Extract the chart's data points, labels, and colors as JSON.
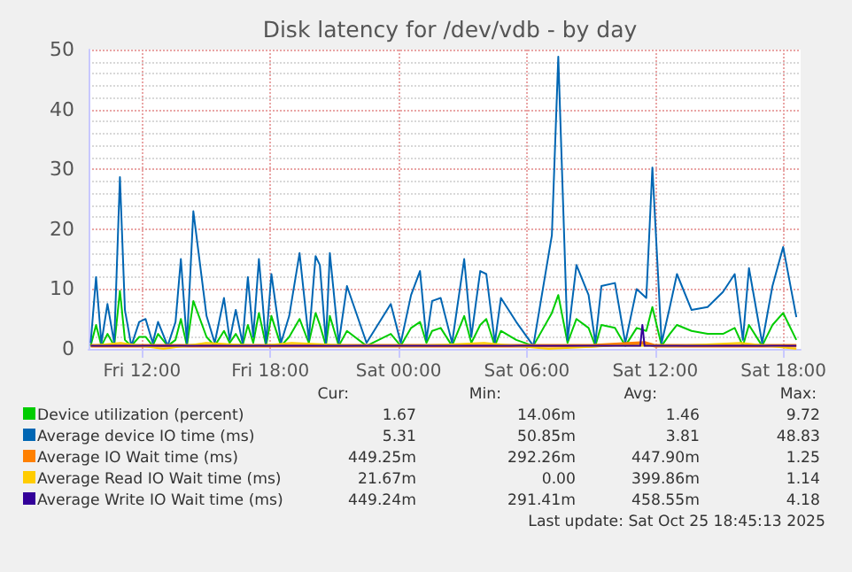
{
  "chart_data": {
    "type": "line",
    "title": "Disk latency for /dev/vdb - by day",
    "xlim": [
      "2025-10-24T09:30",
      "2025-10-25T18:48"
    ],
    "xticks": [
      {
        "value": "2025-10-24T12:00",
        "label": "Fri 12:00"
      },
      {
        "value": "2025-10-24T18:00",
        "label": "Fri 18:00"
      },
      {
        "value": "2025-10-25T00:00",
        "label": "Sat 00:00"
      },
      {
        "value": "2025-10-25T06:00",
        "label": "Sat 06:00"
      },
      {
        "value": "2025-10-25T12:00",
        "label": "Sat 12:00"
      },
      {
        "value": "2025-10-25T18:00",
        "label": "Sat 18:00"
      }
    ],
    "ylim": [
      0,
      50
    ],
    "yticks": [
      0,
      10,
      20,
      30,
      40,
      50
    ],
    "grid": true,
    "legend": "bottom",
    "marker": "none",
    "x": [
      "2025-10-24T09:36",
      "2025-10-24T09:51",
      "2025-10-24T10:06",
      "2025-10-24T10:23",
      "2025-10-24T10:42",
      "2025-10-24T10:58",
      "2025-10-24T11:12",
      "2025-10-24T11:30",
      "2025-10-24T11:52",
      "2025-10-24T12:10",
      "2025-10-24T12:30",
      "2025-10-24T12:45",
      "2025-10-24T13:12",
      "2025-10-24T13:34",
      "2025-10-24T13:49",
      "2025-10-24T14:06",
      "2025-10-24T14:24",
      "2025-10-24T15:01",
      "2025-10-24T15:24",
      "2025-10-24T15:50",
      "2025-10-24T16:06",
      "2025-10-24T16:23",
      "2025-10-24T16:42",
      "2025-10-24T16:57",
      "2025-10-24T17:12",
      "2025-10-24T17:28",
      "2025-10-24T17:48",
      "2025-10-24T18:03",
      "2025-10-24T18:30",
      "2025-10-24T18:53",
      "2025-10-24T19:22",
      "2025-10-24T19:48",
      "2025-10-24T20:07",
      "2025-10-24T20:19",
      "2025-10-24T20:36",
      "2025-10-24T20:47",
      "2025-10-24T21:12",
      "2025-10-24T21:35",
      "2025-10-24T22:30",
      "2025-10-24T23:38",
      "2025-10-25T00:06",
      "2025-10-25T00:35",
      "2025-10-25T01:00",
      "2025-10-25T01:18",
      "2025-10-25T01:34",
      "2025-10-25T01:58",
      "2025-10-25T02:30",
      "2025-10-25T03:04",
      "2025-10-25T03:24",
      "2025-10-25T03:49",
      "2025-10-25T04:06",
      "2025-10-25T04:30",
      "2025-10-25T04:47",
      "2025-10-25T05:30",
      "2025-10-25T06:18",
      "2025-10-25T07:10",
      "2025-10-25T07:28",
      "2025-10-25T07:54",
      "2025-10-25T08:19",
      "2025-10-25T08:53",
      "2025-10-25T09:12",
      "2025-10-25T09:29",
      "2025-10-25T10:07",
      "2025-10-25T10:36",
      "2025-10-25T11:08",
      "2025-10-25T11:35",
      "2025-10-25T11:52",
      "2025-10-25T12:18",
      "2025-10-25T12:41",
      "2025-10-25T13:01",
      "2025-10-25T13:42",
      "2025-10-25T14:27",
      "2025-10-25T15:10",
      "2025-10-25T15:43",
      "2025-10-25T16:06",
      "2025-10-25T16:23",
      "2025-10-25T17:00",
      "2025-10-25T17:29",
      "2025-10-25T17:59",
      "2025-10-25T18:36"
    ],
    "series": [
      {
        "name": "Device utilization (percent)",
        "color": "#00cc00",
        "values": [
          0.5,
          4,
          0.5,
          2.5,
          0.5,
          9.7,
          1.5,
          0.5,
          2,
          2,
          0.5,
          2.5,
          0.5,
          1.5,
          5,
          0.5,
          8,
          2,
          0.5,
          3,
          1,
          2.5,
          0.5,
          4,
          1,
          6,
          0.5,
          5.5,
          0.5,
          2,
          5,
          1,
          6,
          4,
          0.5,
          5.5,
          0.5,
          3,
          0.5,
          2.5,
          0.5,
          3.5,
          4.5,
          1,
          3,
          3.5,
          0.5,
          5.5,
          1,
          4,
          5,
          0.5,
          3,
          1.5,
          0.5,
          6,
          9,
          1,
          5,
          3.5,
          0.5,
          4,
          3.5,
          0.5,
          3.5,
          3,
          7,
          0.5,
          2.5,
          4,
          3,
          2.5,
          2.5,
          3.5,
          0.5,
          4,
          0.5,
          4,
          6,
          1.5
        ]
      },
      {
        "name": "Average device IO time (ms)",
        "color": "#0066b3",
        "values": [
          1,
          12,
          1,
          7.5,
          1,
          28.7,
          6.5,
          0.5,
          4.5,
          5,
          1,
          4.5,
          0.5,
          4.5,
          15,
          1,
          23,
          5.5,
          1,
          8.5,
          1.5,
          6.5,
          1,
          12,
          2,
          15,
          1,
          12.5,
          1,
          5.5,
          16,
          1.5,
          15.5,
          14,
          1,
          16,
          1,
          10.5,
          1,
          7.5,
          1,
          9,
          13,
          1.5,
          8,
          8.5,
          1,
          15,
          2,
          13,
          12.5,
          1,
          8.5,
          4.5,
          0.5,
          19,
          48.8,
          1.5,
          14,
          9,
          1,
          10.5,
          11,
          1,
          10,
          8.5,
          30.3,
          1,
          7,
          12.5,
          6.5,
          7,
          9.5,
          12.5,
          1.5,
          13.5,
          1,
          10.5,
          17,
          5.3
        ]
      },
      {
        "name": "Average IO Wait time (ms)",
        "color": "#ff8000",
        "x": [
          "2025-10-24T09:36",
          "2025-10-24T13:00",
          "2025-10-24T17:00",
          "2025-10-24T21:00",
          "2025-10-25T01:00",
          "2025-10-25T05:00",
          "2025-10-25T09:00",
          "2025-10-25T11:30",
          "2025-10-25T12:00",
          "2025-10-25T15:00",
          "2025-10-25T18:36"
        ],
        "values": [
          0.5,
          0.5,
          0.5,
          0.5,
          0.5,
          0.5,
          0.5,
          1,
          0.5,
          0.5,
          0.5
        ]
      },
      {
        "name": "Average Read IO Wait time (ms)",
        "color": "#ffcc00",
        "x": [
          "2025-10-24T09:36",
          "2025-10-24T11:00",
          "2025-10-24T13:00",
          "2025-10-24T15:00",
          "2025-10-24T17:30",
          "2025-10-24T19:00",
          "2025-10-24T22:00",
          "2025-10-25T01:00",
          "2025-10-25T04:00",
          "2025-10-25T07:00",
          "2025-10-25T10:00",
          "2025-10-25T13:00",
          "2025-10-25T16:00",
          "2025-10-25T18:36"
        ],
        "values": [
          0.5,
          1,
          0,
          1,
          0.5,
          1,
          0.5,
          0.5,
          1,
          0,
          0.5,
          0.5,
          1,
          0
        ]
      },
      {
        "name": "Average Write IO Wait time (ms)",
        "color": "#330099",
        "x": [
          "2025-10-24T09:36",
          "2025-10-24T13:00",
          "2025-10-24T17:00",
          "2025-10-24T21:00",
          "2025-10-25T01:00",
          "2025-10-25T05:00",
          "2025-10-25T09:00",
          "2025-10-25T11:18",
          "2025-10-25T11:24",
          "2025-10-25T11:30",
          "2025-10-25T12:00",
          "2025-10-25T15:00",
          "2025-10-25T18:36"
        ],
        "values": [
          0.5,
          0.5,
          0.5,
          0.5,
          0.5,
          0.5,
          0.5,
          0.5,
          4,
          0.5,
          0.5,
          0.5,
          0.5
        ]
      }
    ],
    "annotations": [
      "Cur:",
      "Min:",
      "Avg:",
      "Max:",
      "1.67",
      "14.06m",
      "1.46",
      "9.72",
      "5.31",
      "50.85m",
      "3.81",
      "48.83",
      "449.25m",
      "292.26m",
      "447.90m",
      "1.25",
      "21.67m",
      "0.00",
      "399.86m",
      "1.14",
      "449.24m",
      "291.41m",
      "458.55m",
      "4.18",
      "Last update: Sat Oct 25 18:45:13 2025"
    ]
  }
}
